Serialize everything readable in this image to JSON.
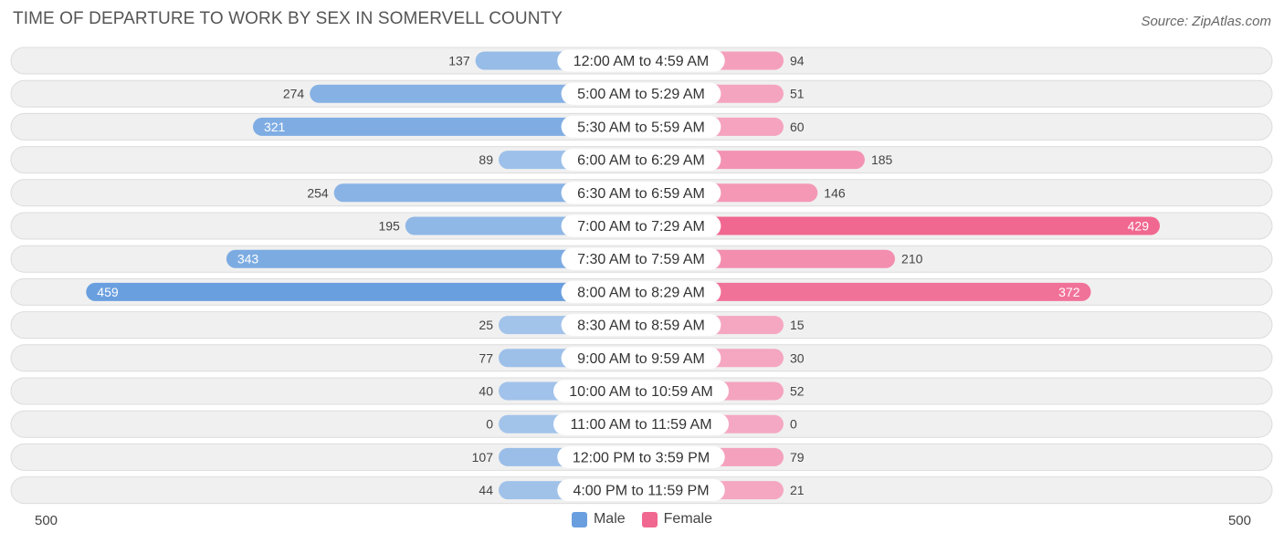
{
  "header": {
    "title": "TIME OF DEPARTURE TO WORK BY SEX IN SOMERVELL COUNTY",
    "source": "Source: ZipAtlas.com"
  },
  "axis": {
    "left_label": "500",
    "right_label": "500"
  },
  "legend": {
    "male_label": "Male",
    "female_label": "Female"
  },
  "colors": {
    "male_light": "#a3c4ea",
    "male_dark": "#6a9fdf",
    "female_light": "#f5a8c3",
    "female_dark": "#f06790",
    "row_bg": "#f0f0f0",
    "row_border": "#dcdcdc"
  },
  "chart_data": {
    "type": "bar",
    "orientation": "horizontal-diverging",
    "xlim": [
      0,
      500
    ],
    "categories": [
      "12:00 AM to 4:59 AM",
      "5:00 AM to 5:29 AM",
      "5:30 AM to 5:59 AM",
      "6:00 AM to 6:29 AM",
      "6:30 AM to 6:59 AM",
      "7:00 AM to 7:29 AM",
      "7:30 AM to 7:59 AM",
      "8:00 AM to 8:29 AM",
      "8:30 AM to 8:59 AM",
      "9:00 AM to 9:59 AM",
      "10:00 AM to 10:59 AM",
      "11:00 AM to 11:59 AM",
      "12:00 PM to 3:59 PM",
      "4:00 PM to 11:59 PM"
    ],
    "series": [
      {
        "name": "Male",
        "values": [
          137,
          274,
          321,
          89,
          254,
          195,
          343,
          459,
          25,
          77,
          40,
          0,
          107,
          44
        ]
      },
      {
        "name": "Female",
        "values": [
          94,
          51,
          60,
          185,
          146,
          429,
          210,
          372,
          15,
          30,
          52,
          0,
          79,
          21
        ]
      }
    ]
  }
}
